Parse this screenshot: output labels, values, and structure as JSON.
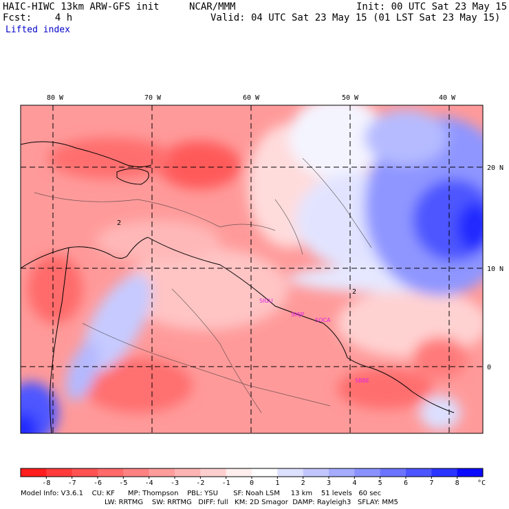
{
  "header": {
    "model": "HAIC-HIWC 13km ARW-GFS init",
    "org": "NCAR/MMM",
    "init": "Init: 00 UTC Sat 23 May 15",
    "fcst": "Fcst:    4 h",
    "valid": "Valid: 04 UTC Sat 23 May 15 (01 LST Sat 23 May 15)",
    "field": "Lifted index"
  },
  "axes": {
    "lon_labels": [
      "80 W",
      "70 W",
      "60 W",
      "50 W",
      "40 W"
    ],
    "lat_labels": [
      "20 N",
      "10 N",
      "0"
    ]
  },
  "stations": [
    "SIGU",
    "SMJP",
    "SOCA",
    "SBBE"
  ],
  "colorbar": {
    "ticks": [
      "-8",
      "-7",
      "-6",
      "-5",
      "-4",
      "-3",
      "-2",
      "-1",
      "0",
      "1",
      "2",
      "3",
      "4",
      "5",
      "6",
      "7",
      "8"
    ],
    "unit": "°C",
    "colors": [
      "#ff1d1d",
      "#ff3b3b",
      "#ff5252",
      "#ff6a6a",
      "#ff8282",
      "#ff9c9c",
      "#ffb4b4",
      "#ffcfcf",
      "#ffeeee",
      "#ffffff",
      "#dde0ff",
      "#c2c6ff",
      "#a6acff",
      "#8a92ff",
      "#6c74ff",
      "#4c55ff",
      "#2b34ff",
      "#0a0aff"
    ]
  },
  "footer": {
    "line1": "Model Info: V3.6.1    CU: KF      MP: Thompson    PBL: YSU       SF: Noah LSM     13 km    51 levels   60 sec",
    "line2": "LW: RRTMG    SW: RRTMG   DIFF: full   KM: 2D Smagor  DAMP: Rayleigh3   SFLAY: MM5"
  },
  "contour_label": "2"
}
